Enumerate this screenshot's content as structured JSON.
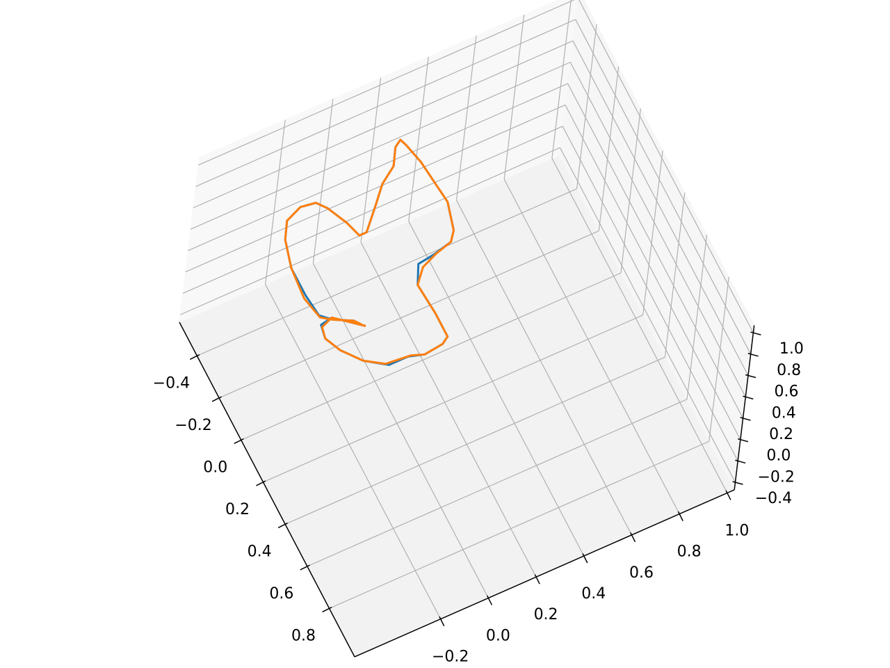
{
  "chart_data": {
    "type": "line3d",
    "series": [
      {
        "color": "#1f77b4",
        "x": [
          0.15,
          0.06,
          0.07,
          0.13,
          0.2,
          0.28,
          0.34,
          0.34,
          0.36,
          0.35,
          0.33,
          0.22,
          0.08,
          0.0,
          -0.01,
          -0.03,
          -0.07,
          -0.19,
          -0.29,
          -0.39,
          -0.48,
          -0.51,
          -0.49,
          -0.42,
          -0.37,
          -0.3,
          -0.21,
          -0.21,
          -0.28,
          -0.37,
          -0.41,
          -0.42,
          -0.39,
          -0.32,
          -0.2,
          -0.07,
          0.03,
          0.07,
          0.11,
          0.14
        ],
        "y": [
          -0.16,
          -0.26,
          -0.31,
          -0.32,
          -0.29,
          -0.23,
          -0.15,
          -0.07,
          -0.01,
          0.07,
          0.1,
          0.1,
          0.09,
          0.13,
          0.2,
          0.28,
          0.31,
          0.34,
          0.33,
          0.32,
          0.3,
          0.29,
          0.26,
          0.22,
          0.15,
          0.09,
          0.01,
          -0.02,
          -0.04,
          -0.08,
          -0.11,
          -0.17,
          -0.24,
          -0.28,
          -0.31,
          -0.31,
          -0.3,
          -0.26,
          -0.19,
          -0.17
        ],
        "z": [
          0.5,
          0.5,
          0.5,
          0.5,
          0.5,
          0.5,
          0.5,
          0.5,
          0.5,
          0.5,
          0.5,
          0.5,
          0.5,
          0.5,
          0.5,
          0.5,
          0.5,
          0.5,
          0.5,
          0.5,
          0.5,
          0.5,
          0.5,
          0.5,
          0.5,
          0.5,
          0.5,
          0.5,
          0.5,
          0.5,
          0.5,
          0.5,
          0.5,
          0.5,
          0.5,
          0.5,
          0.5,
          0.5,
          0.5,
          0.5
        ]
      },
      {
        "color": "#ff7f0e",
        "x": [
          0.15,
          0.06,
          0.08,
          0.13,
          0.2,
          0.28,
          0.33,
          0.34,
          0.36,
          0.35,
          0.33,
          0.22,
          0.08,
          0.02,
          -0.01,
          -0.03,
          -0.07,
          -0.19,
          -0.29,
          -0.39,
          -0.48,
          -0.51,
          -0.49,
          -0.42,
          -0.37,
          -0.3,
          -0.21,
          -0.21,
          -0.28,
          -0.37,
          -0.41,
          -0.42,
          -0.39,
          -0.32,
          -0.2,
          -0.06,
          0.04,
          0.07,
          0.11,
          0.14
        ],
        "y": [
          -0.16,
          -0.26,
          -0.31,
          -0.32,
          -0.29,
          -0.23,
          -0.16,
          -0.06,
          -0.01,
          0.07,
          0.1,
          0.1,
          0.09,
          0.14,
          0.21,
          0.28,
          0.31,
          0.34,
          0.33,
          0.32,
          0.3,
          0.29,
          0.26,
          0.22,
          0.15,
          0.09,
          0.01,
          -0.02,
          -0.04,
          -0.08,
          -0.11,
          -0.17,
          -0.24,
          -0.28,
          -0.31,
          -0.32,
          -0.3,
          -0.26,
          -0.19,
          -0.17
        ],
        "z": [
          0.5,
          0.5,
          0.5,
          0.5,
          0.5,
          0.5,
          0.5,
          0.5,
          0.5,
          0.5,
          0.5,
          0.5,
          0.5,
          0.5,
          0.5,
          0.5,
          0.5,
          0.5,
          0.5,
          0.5,
          0.5,
          0.5,
          0.5,
          0.5,
          0.5,
          0.5,
          0.5,
          0.5,
          0.5,
          0.5,
          0.5,
          0.5,
          0.5,
          0.5,
          0.5,
          0.5,
          0.5,
          0.5,
          0.5,
          0.5
        ]
      }
    ],
    "xlim": [
      -0.56,
      1.03
    ],
    "ylim": [
      -0.56,
      1.03
    ],
    "zlim": [
      -0.47,
      1.07
    ],
    "xticks": [
      {
        "value": -0.4,
        "label": "−0.4"
      },
      {
        "value": -0.2,
        "label": "−0.2"
      },
      {
        "value": 0.0,
        "label": "0.0"
      },
      {
        "value": 0.2,
        "label": "0.2"
      },
      {
        "value": 0.4,
        "label": "0.4"
      },
      {
        "value": 0.6,
        "label": "0.6"
      },
      {
        "value": 0.8,
        "label": "0.8"
      }
    ],
    "yticks": [
      {
        "value": -0.2,
        "label": "−0.2"
      },
      {
        "value": 0.0,
        "label": "0.0"
      },
      {
        "value": 0.2,
        "label": "0.2"
      },
      {
        "value": 0.4,
        "label": "0.4"
      },
      {
        "value": 0.6,
        "label": "0.6"
      },
      {
        "value": 0.8,
        "label": "0.8"
      },
      {
        "value": 1.0,
        "label": "1.0"
      }
    ],
    "zticks": [
      {
        "value": -0.4,
        "label": "−0.4"
      },
      {
        "value": -0.2,
        "label": "−0.2"
      },
      {
        "value": 0.0,
        "label": "0.0"
      },
      {
        "value": 0.2,
        "label": "0.2"
      },
      {
        "value": 0.4,
        "label": "0.4"
      },
      {
        "value": 0.6,
        "label": "0.6"
      },
      {
        "value": 0.8,
        "label": "0.8"
      },
      {
        "value": 1.0,
        "label": "1.0"
      }
    ],
    "grid": true
  }
}
